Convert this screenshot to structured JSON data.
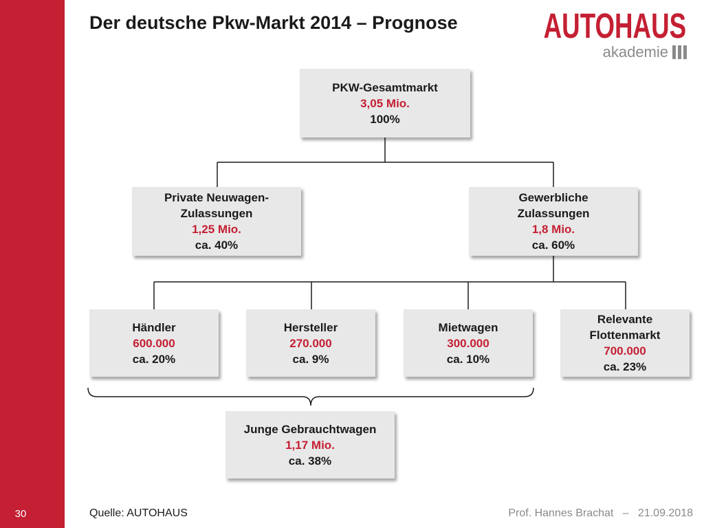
{
  "slide": {
    "title": "Der deutsche Pkw-Markt 2014 – Prognose",
    "page_number": "30"
  },
  "logo": {
    "main": "AUTOHAUS",
    "sub": "akademie"
  },
  "diagram": {
    "root": {
      "line1": "PKW-Gesamtmarkt",
      "value": "3,05 Mio.",
      "share": "100%"
    },
    "private": {
      "line1": "Private Neuwagen-",
      "line2": "Zulassungen",
      "value": "1,25 Mio.",
      "share": "ca. 40%"
    },
    "commercial": {
      "line1": "Gewerbliche",
      "line2": "Zulassungen",
      "value": "1,8 Mio.",
      "share": "ca. 60%"
    },
    "dealer": {
      "line1": "Händler",
      "value": "600.000",
      "share": "ca. 20%"
    },
    "manufacturer": {
      "line1": "Hersteller",
      "value": "270.000",
      "share": "ca. 9%"
    },
    "rental": {
      "line1": "Mietwagen",
      "value": "300.000",
      "share": "ca. 10%"
    },
    "fleet": {
      "line1": "Relevante",
      "line2": "Flottenmarkt",
      "value": "700.000",
      "share": "ca. 23%"
    },
    "used": {
      "line1": "Junge Gebrauchtwagen",
      "value": "1,17 Mio.",
      "share": "ca. 38%"
    }
  },
  "footer": {
    "source": "Quelle: AUTOHAUS",
    "author": "Prof. Hannes Brachat",
    "separator": "–",
    "date": "21.09.2018"
  },
  "colors": {
    "accent": "#c41f33",
    "box": "#e8e8e8",
    "footer_text": "#8a8a8a"
  }
}
